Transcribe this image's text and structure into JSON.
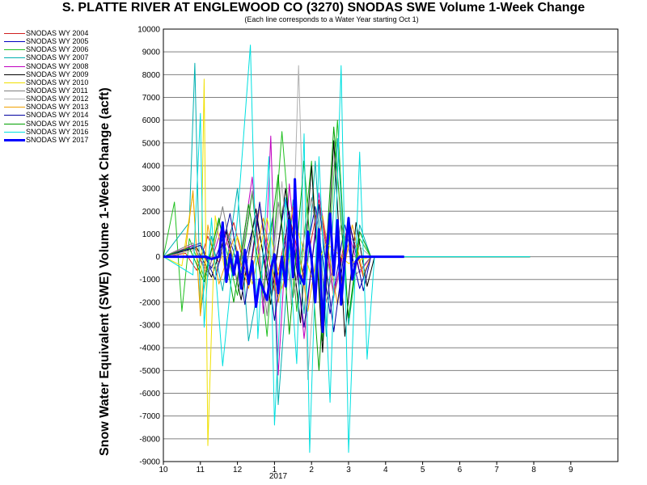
{
  "chart_data": {
    "type": "line",
    "title": "S. PLATTE RIVER AT ENGLEWOOD CO (3270) SNODAS SWE Volume 1-Week Change",
    "subtitle": "(Each line corresponds to a Water Year starting Oct 1)",
    "ylabel": "Snow Water Equivalent (SWE) Volume 1-Week Change (acft)",
    "xlabel": "",
    "year_label": "2017",
    "ylim": [
      -9000,
      10000
    ],
    "ytick_step": 1000,
    "grid": "horizontal",
    "legend_position": "left",
    "x_tick_labels": [
      "10",
      "11",
      "12",
      "1",
      "2",
      "3",
      "4",
      "5",
      "6",
      "7",
      "8",
      "9"
    ],
    "series": [
      {
        "name": "SNODAS WY 2004",
        "color": "#d02020",
        "width": 1,
        "points": [
          [
            0.0,
            0
          ],
          [
            0.6,
            150
          ],
          [
            0.9,
            -600
          ],
          [
            1.2,
            900
          ],
          [
            1.5,
            -300
          ],
          [
            1.9,
            1500
          ],
          [
            2.3,
            -1200
          ],
          [
            2.6,
            2200
          ],
          [
            3.0,
            -1500
          ],
          [
            3.4,
            1800
          ],
          [
            3.8,
            -900
          ],
          [
            4.2,
            2500
          ],
          [
            4.6,
            -1800
          ],
          [
            5.0,
            1600
          ],
          [
            5.4,
            -900
          ],
          [
            5.6,
            0
          ],
          [
            9.9,
            0
          ]
        ]
      },
      {
        "name": "SNODAS WY 2005",
        "color": "#0000c0",
        "width": 1,
        "points": [
          [
            0.0,
            0
          ],
          [
            1.0,
            600
          ],
          [
            1.3,
            -500
          ],
          [
            1.7,
            1200
          ],
          [
            2.1,
            -800
          ],
          [
            2.5,
            1800
          ],
          [
            2.9,
            -1600
          ],
          [
            3.3,
            2600
          ],
          [
            3.7,
            -1200
          ],
          [
            4.1,
            2200
          ],
          [
            4.5,
            -2500
          ],
          [
            4.9,
            1400
          ],
          [
            5.3,
            -1400
          ],
          [
            5.6,
            0
          ],
          [
            9.9,
            0
          ]
        ]
      },
      {
        "name": "SNODAS WY 2006",
        "color": "#20c020",
        "width": 1,
        "points": [
          [
            0.0,
            0
          ],
          [
            0.3,
            2400
          ],
          [
            0.5,
            -2400
          ],
          [
            0.7,
            800
          ],
          [
            1.1,
            -900
          ],
          [
            1.5,
            1600
          ],
          [
            2.0,
            -1700
          ],
          [
            2.4,
            2800
          ],
          [
            2.8,
            -3500
          ],
          [
            3.2,
            5500
          ],
          [
            3.6,
            -2400
          ],
          [
            4.0,
            4200
          ],
          [
            4.3,
            -3700
          ],
          [
            4.7,
            6000
          ],
          [
            5.0,
            -3000
          ],
          [
            5.3,
            800
          ],
          [
            5.6,
            0
          ],
          [
            9.9,
            0
          ]
        ]
      },
      {
        "name": "SNODAS WY 2007",
        "color": "#00b0b0",
        "width": 1,
        "points": [
          [
            0.0,
            0
          ],
          [
            0.7,
            1500
          ],
          [
            0.85,
            8500
          ],
          [
            1.0,
            -2500
          ],
          [
            1.3,
            900
          ],
          [
            1.6,
            -1500
          ],
          [
            2.0,
            3000
          ],
          [
            2.3,
            -3700
          ],
          [
            2.6,
            -1000
          ],
          [
            2.95,
            1700
          ],
          [
            3.1,
            -6500
          ],
          [
            3.5,
            2500
          ],
          [
            3.8,
            -2500
          ],
          [
            4.1,
            4200
          ],
          [
            4.4,
            -3500
          ],
          [
            4.7,
            5200
          ],
          [
            5.0,
            -3000
          ],
          [
            5.3,
            1400
          ],
          [
            5.6,
            0
          ],
          [
            9.9,
            0
          ]
        ]
      },
      {
        "name": "SNODAS WY 2008",
        "color": "#c000c0",
        "width": 1,
        "points": [
          [
            0.0,
            0
          ],
          [
            0.8,
            500
          ],
          [
            1.2,
            -700
          ],
          [
            1.6,
            1400
          ],
          [
            2.0,
            -1100
          ],
          [
            2.4,
            3500
          ],
          [
            2.7,
            -2500
          ],
          [
            2.9,
            5300
          ],
          [
            3.1,
            -5200
          ],
          [
            3.4,
            3200
          ],
          [
            3.8,
            -3600
          ],
          [
            4.2,
            2800
          ],
          [
            4.6,
            -1600
          ],
          [
            5.0,
            1100
          ],
          [
            5.3,
            -700
          ],
          [
            5.6,
            0
          ],
          [
            9.9,
            0
          ]
        ]
      },
      {
        "name": "SNODAS WY 2009",
        "color": "#000000",
        "width": 1,
        "points": [
          [
            0.0,
            0
          ],
          [
            0.9,
            400
          ],
          [
            1.3,
            -900
          ],
          [
            1.7,
            1100
          ],
          [
            2.1,
            -1900
          ],
          [
            2.5,
            2100
          ],
          [
            2.9,
            -2100
          ],
          [
            3.3,
            3000
          ],
          [
            3.7,
            -2900
          ],
          [
            4.0,
            4000
          ],
          [
            4.3,
            -4200
          ],
          [
            4.6,
            5100
          ],
          [
            4.9,
            -3500
          ],
          [
            5.2,
            1500
          ],
          [
            5.5,
            -1300
          ],
          [
            5.7,
            0
          ],
          [
            9.9,
            0
          ]
        ]
      },
      {
        "name": "SNODAS WY 2010",
        "color": "#f0e000",
        "width": 1,
        "points": [
          [
            0.0,
            0
          ],
          [
            0.5,
            -400
          ],
          [
            0.8,
            2800
          ],
          [
            1.0,
            -2500
          ],
          [
            1.1,
            7800
          ],
          [
            1.2,
            -8300
          ],
          [
            1.4,
            1800
          ],
          [
            1.7,
            -1000
          ],
          [
            2.0,
            900
          ],
          [
            2.4,
            -1200
          ],
          [
            2.8,
            1700
          ],
          [
            3.2,
            -1400
          ],
          [
            3.6,
            1300
          ],
          [
            4.0,
            -900
          ],
          [
            4.4,
            600
          ],
          [
            5.0,
            -300
          ],
          [
            5.6,
            0
          ],
          [
            9.9,
            0
          ]
        ]
      },
      {
        "name": "SNODAS WY 2011",
        "color": "#808080",
        "width": 1,
        "points": [
          [
            0.0,
            0
          ],
          [
            0.8,
            600
          ],
          [
            1.2,
            -900
          ],
          [
            1.6,
            2200
          ],
          [
            2.0,
            -1200
          ],
          [
            2.4,
            2900
          ],
          [
            2.8,
            -2600
          ],
          [
            3.1,
            2400
          ],
          [
            3.5,
            -1800
          ],
          [
            4.0,
            2600
          ],
          [
            4.4,
            -2000
          ],
          [
            4.8,
            1400
          ],
          [
            5.2,
            -800
          ],
          [
            5.6,
            0
          ],
          [
            9.9,
            0
          ]
        ]
      },
      {
        "name": "SNODAS WY 2012",
        "color": "#b0b0b0",
        "width": 1,
        "points": [
          [
            0.0,
            0
          ],
          [
            0.9,
            300
          ],
          [
            1.4,
            -600
          ],
          [
            1.8,
            900
          ],
          [
            2.2,
            -700
          ],
          [
            2.6,
            2200
          ],
          [
            2.9,
            -1500
          ],
          [
            3.2,
            3300
          ],
          [
            3.45,
            -2100
          ],
          [
            3.65,
            8400
          ],
          [
            3.9,
            -5400
          ],
          [
            4.2,
            2100
          ],
          [
            4.6,
            -1800
          ],
          [
            5.0,
            900
          ],
          [
            5.6,
            0
          ],
          [
            9.9,
            0
          ]
        ]
      },
      {
        "name": "SNODAS WY 2013",
        "color": "#f0a000",
        "width": 1,
        "points": [
          [
            0.0,
            0
          ],
          [
            0.6,
            300
          ],
          [
            0.8,
            2900
          ],
          [
            1.0,
            -2600
          ],
          [
            1.2,
            1400
          ],
          [
            1.5,
            -1200
          ],
          [
            1.9,
            800
          ],
          [
            2.3,
            -1400
          ],
          [
            2.7,
            1700
          ],
          [
            3.1,
            -2000
          ],
          [
            3.5,
            2200
          ],
          [
            3.9,
            -2400
          ],
          [
            4.3,
            1800
          ],
          [
            4.7,
            -2100
          ],
          [
            5.1,
            1400
          ],
          [
            5.4,
            -800
          ],
          [
            5.6,
            0
          ],
          [
            9.9,
            0
          ]
        ]
      },
      {
        "name": "SNODAS WY 2014",
        "color": "#0000a0",
        "width": 1,
        "points": [
          [
            0.0,
            0
          ],
          [
            1.0,
            500
          ],
          [
            1.4,
            -1000
          ],
          [
            1.8,
            1900
          ],
          [
            2.2,
            -2100
          ],
          [
            2.6,
            2400
          ],
          [
            3.0,
            -2800
          ],
          [
            3.4,
            2000
          ],
          [
            3.8,
            -3100
          ],
          [
            4.2,
            2300
          ],
          [
            4.6,
            -3300
          ],
          [
            5.0,
            1700
          ],
          [
            5.4,
            -1500
          ],
          [
            5.6,
            0
          ],
          [
            9.9,
            0
          ]
        ]
      },
      {
        "name": "SNODAS WY 2015",
        "color": "#00a000",
        "width": 1,
        "points": [
          [
            0.0,
            0
          ],
          [
            0.7,
            400
          ],
          [
            1.1,
            -1100
          ],
          [
            1.5,
            1700
          ],
          [
            1.9,
            -2000
          ],
          [
            2.3,
            2300
          ],
          [
            2.7,
            -1600
          ],
          [
            3.1,
            3600
          ],
          [
            3.4,
            -3400
          ],
          [
            3.8,
            4200
          ],
          [
            4.2,
            -5000
          ],
          [
            4.6,
            5700
          ],
          [
            5.0,
            -2700
          ],
          [
            5.3,
            1100
          ],
          [
            5.6,
            0
          ],
          [
            9.9,
            0
          ]
        ]
      },
      {
        "name": "SNODAS WY 2016",
        "color": "#00e0e0",
        "width": 1,
        "points": [
          [
            0.0,
            0
          ],
          [
            0.8,
            -800
          ],
          [
            1.0,
            6300
          ],
          [
            1.1,
            -3100
          ],
          [
            1.3,
            1700
          ],
          [
            1.6,
            -4800
          ],
          [
            2.0,
            1700
          ],
          [
            2.35,
            9300
          ],
          [
            2.55,
            -3600
          ],
          [
            2.85,
            4400
          ],
          [
            3.0,
            -7400
          ],
          [
            3.3,
            2600
          ],
          [
            3.6,
            -4700
          ],
          [
            3.8,
            5400
          ],
          [
            3.95,
            -8600
          ],
          [
            4.2,
            4400
          ],
          [
            4.5,
            -6400
          ],
          [
            4.8,
            8400
          ],
          [
            5.0,
            -8600
          ],
          [
            5.3,
            4600
          ],
          [
            5.5,
            -4500
          ],
          [
            5.7,
            0
          ],
          [
            9.9,
            0
          ]
        ]
      },
      {
        "name": "SNODAS WY 2017",
        "color": "#0000ff",
        "width": 3,
        "points": [
          [
            0.0,
            0
          ],
          [
            1.15,
            0
          ],
          [
            1.3,
            -100
          ],
          [
            1.5,
            0
          ],
          [
            1.6,
            1500
          ],
          [
            1.7,
            -1100
          ],
          [
            1.8,
            100
          ],
          [
            1.9,
            -800
          ],
          [
            2.0,
            200
          ],
          [
            2.1,
            -1400
          ],
          [
            2.2,
            300
          ],
          [
            2.3,
            -1200
          ],
          [
            2.4,
            -200
          ],
          [
            2.5,
            -2200
          ],
          [
            2.6,
            -1000
          ],
          [
            2.8,
            -1900
          ],
          [
            2.9,
            -600
          ],
          [
            3.0,
            100
          ],
          [
            3.1,
            -1600
          ],
          [
            3.2,
            0
          ],
          [
            3.3,
            -1300
          ],
          [
            3.4,
            1600
          ],
          [
            3.5,
            -900
          ],
          [
            3.55,
            3400
          ],
          [
            3.65,
            -700
          ],
          [
            3.8,
            -1200
          ],
          [
            3.9,
            1100
          ],
          [
            4.0,
            -100
          ],
          [
            4.1,
            -2000
          ],
          [
            4.2,
            1200
          ],
          [
            4.3,
            -3300
          ],
          [
            4.4,
            0
          ],
          [
            4.5,
            1900
          ],
          [
            4.6,
            -800
          ],
          [
            4.7,
            1600
          ],
          [
            4.8,
            -2100
          ],
          [
            4.9,
            -100
          ],
          [
            5.0,
            1700
          ],
          [
            5.1,
            -1000
          ],
          [
            5.2,
            -200
          ],
          [
            5.3,
            0
          ],
          [
            5.5,
            0
          ],
          [
            6.5,
            0
          ]
        ]
      }
    ]
  }
}
